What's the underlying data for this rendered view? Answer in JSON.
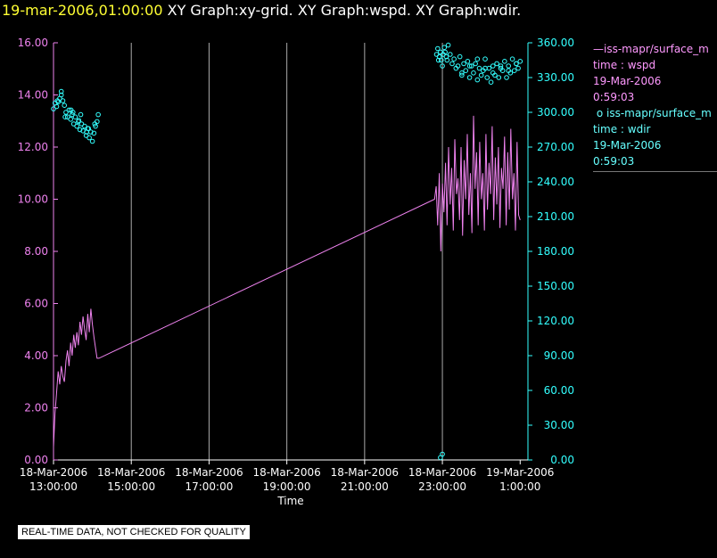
{
  "header": {
    "timestamp": "19-mar-2006,01:00:00",
    "graphs": "XY Graph:xy-grid.  XY Graph:wspd.  XY Graph:wdir."
  },
  "legend": {
    "wspd": {
      "name": "iss-mapr/surface_m",
      "desc": "time : wspd",
      "date": "19-Mar-2006",
      "time": "0:59:03"
    },
    "wdir": {
      "name": "iss-mapr/surface_m",
      "desc": "time : wdir",
      "date": "19-Mar-2006",
      "time": "0:59:03"
    }
  },
  "footer": {
    "note": "REAL-TIME DATA, NOT CHECKED FOR QUALITY"
  },
  "colors": {
    "wspd": "#ee82ee",
    "wdir": "#33ffff",
    "grid": "#aaaaaa",
    "axis": "#ffffff"
  },
  "chart_data": {
    "type": "line",
    "xlabel": "Time",
    "xlim_hours": [
      13,
      25.2
    ],
    "x_ticks": [
      {
        "hour": 13,
        "date": "18-Mar-2006",
        "time": "13:00:00"
      },
      {
        "hour": 15,
        "date": "18-Mar-2006",
        "time": "15:00:00"
      },
      {
        "hour": 17,
        "date": "18-Mar-2006",
        "time": "17:00:00"
      },
      {
        "hour": 19,
        "date": "18-Mar-2006",
        "time": "19:00:00"
      },
      {
        "hour": 21,
        "date": "18-Mar-2006",
        "time": "21:00:00"
      },
      {
        "hour": 23,
        "date": "18-Mar-2006",
        "time": "23:00:00"
      },
      {
        "hour": 25,
        "date": "19-Mar-2006",
        "time": "1:00:00"
      }
    ],
    "grid_hours": [
      15,
      17,
      19,
      21,
      23
    ],
    "y_left": {
      "lim": [
        0,
        16
      ],
      "ticks": [
        "0.00",
        "2.00",
        "4.00",
        "6.00",
        "8.00",
        "10.00",
        "12.00",
        "14.00",
        "16.00"
      ]
    },
    "y_right": {
      "lim": [
        0,
        360
      ],
      "ticks": [
        "0.00",
        "30.00",
        "60.00",
        "90.00",
        "120.00",
        "150.00",
        "180.00",
        "210.00",
        "240.00",
        "270.00",
        "300.00",
        "330.00",
        "360.00"
      ]
    },
    "series": [
      {
        "name": "iss-mapr/surface_m time : wspd",
        "axis": "left",
        "style": "line",
        "x": [
          13.0,
          13.04,
          13.08,
          13.12,
          13.16,
          13.2,
          13.24,
          13.28,
          13.32,
          13.36,
          13.4,
          13.44,
          13.48,
          13.52,
          13.56,
          13.6,
          13.64,
          13.68,
          13.72,
          13.76,
          13.8,
          13.84,
          13.88,
          13.92,
          13.96,
          14.0,
          14.04,
          14.08,
          14.12,
          14.17,
          22.8,
          22.84,
          22.88,
          22.92,
          22.96,
          23.0,
          23.04,
          23.08,
          23.12,
          23.16,
          23.2,
          23.24,
          23.28,
          23.32,
          23.36,
          23.4,
          23.44,
          23.48,
          23.52,
          23.56,
          23.6,
          23.64,
          23.68,
          23.72,
          23.76,
          23.8,
          23.84,
          23.88,
          23.92,
          23.96,
          24.0,
          24.04,
          24.08,
          24.12,
          24.16,
          24.2,
          24.24,
          24.28,
          24.32,
          24.36,
          24.4,
          24.44,
          24.48,
          24.52,
          24.56,
          24.6,
          24.64,
          24.68,
          24.72,
          24.76,
          24.8,
          24.84,
          24.88,
          24.92,
          24.96,
          25.0
        ],
        "y": [
          0.5,
          1.8,
          2.6,
          3.4,
          2.9,
          3.6,
          3.2,
          3.0,
          3.8,
          4.2,
          3.6,
          4.5,
          4.0,
          4.8,
          4.3,
          4.9,
          4.4,
          5.3,
          4.8,
          5.5,
          5.0,
          4.6,
          5.6,
          4.9,
          5.8,
          5.2,
          4.7,
          4.3,
          3.9,
          3.9,
          10.0,
          10.5,
          9.0,
          11.0,
          8.0,
          10.6,
          9.5,
          11.4,
          9.0,
          12.0,
          9.8,
          11.2,
          8.8,
          12.3,
          10.2,
          10.8,
          9.2,
          12.0,
          8.6,
          11.5,
          10.0,
          12.5,
          9.4,
          11.0,
          8.7,
          13.2,
          10.4,
          11.8,
          9.0,
          12.2,
          10.0,
          11.0,
          8.8,
          12.5,
          9.6,
          11.4,
          10.2,
          12.8,
          9.2,
          11.6,
          9.8,
          12.0,
          8.9,
          11.2,
          10.4,
          12.4,
          9.0,
          11.8,
          9.6,
          12.7,
          10.0,
          11.0,
          8.8,
          12.2,
          9.4,
          9.2
        ]
      },
      {
        "name": "iss-mapr/surface_m time : wdir",
        "axis": "right",
        "style": "scatter",
        "x": [
          13.0,
          13.04,
          13.08,
          13.12,
          13.16,
          13.2,
          13.24,
          13.28,
          13.32,
          13.36,
          13.4,
          13.44,
          13.48,
          13.52,
          13.56,
          13.6,
          13.64,
          13.68,
          13.72,
          13.76,
          13.8,
          13.84,
          13.88,
          13.92,
          13.96,
          14.0,
          14.04,
          14.08,
          14.12,
          14.15,
          14.06,
          13.9,
          13.7,
          13.5,
          13.3,
          13.1,
          13.2,
          13.45,
          13.65,
          13.85,
          22.85,
          22.9,
          22.95,
          23.0,
          23.05,
          23.1,
          23.15,
          23.2,
          23.25,
          23.3,
          23.35,
          23.4,
          23.45,
          23.5,
          23.55,
          23.6,
          23.65,
          23.7,
          23.75,
          23.8,
          23.85,
          23.9,
          23.95,
          24.0,
          24.05,
          24.1,
          24.15,
          24.2,
          24.25,
          24.3,
          24.35,
          24.4,
          24.45,
          24.5,
          24.55,
          24.6,
          24.65,
          24.7,
          24.75,
          24.8,
          24.85,
          24.9,
          24.95,
          25.0,
          22.88,
          22.92,
          22.97,
          23.02,
          23.07,
          23.12,
          23.5,
          23.7,
          23.9,
          24.1,
          24.3,
          24.5,
          24.7,
          24.9,
          22.95,
          23.0
        ],
        "y": [
          303,
          308,
          305,
          309,
          312,
          318,
          310,
          306,
          300,
          296,
          302,
          294,
          298,
          290,
          296,
          288,
          292,
          285,
          290,
          284,
          288,
          280,
          286,
          278,
          283,
          275,
          282,
          288,
          292,
          298,
          290,
          286,
          298,
          300,
          296,
          310,
          315,
          302,
          293,
          283,
          350,
          345,
          352,
          340,
          356,
          348,
          358,
          350,
          342,
          346,
          338,
          340,
          348,
          334,
          342,
          336,
          344,
          330,
          340,
          334,
          342,
          328,
          338,
          332,
          336,
          346,
          330,
          338,
          326,
          340,
          332,
          342,
          330,
          338,
          336,
          344,
          330,
          340,
          334,
          346,
          336,
          342,
          338,
          344,
          355,
          348,
          345,
          350,
          352,
          345,
          332,
          340,
          346,
          338,
          334,
          340,
          336,
          342,
          2,
          5
        ]
      }
    ]
  }
}
